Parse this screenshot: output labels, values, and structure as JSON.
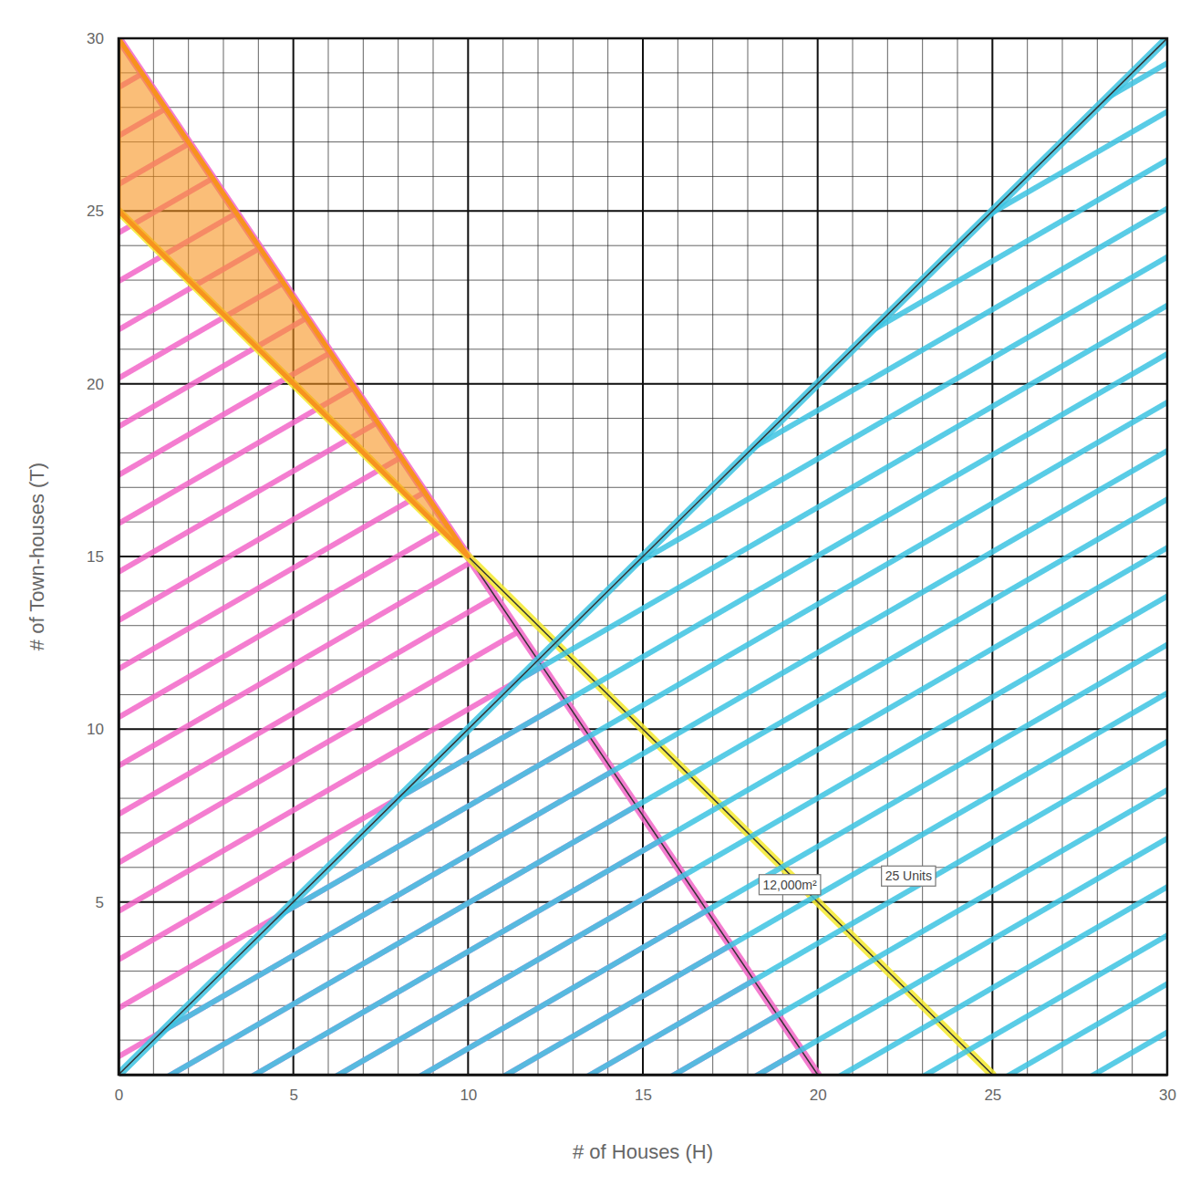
{
  "chart_data": {
    "type": "line",
    "x_label": "# of Houses (H)",
    "y_label": "# of Town-houses (T)",
    "xlim": [
      0,
      30
    ],
    "ylim": [
      0,
      30
    ],
    "xticks": [
      0,
      5,
      10,
      15,
      20,
      25,
      30
    ],
    "yticks": [
      5,
      10,
      15,
      20,
      25,
      30
    ],
    "grid": true,
    "series": [
      {
        "type": "area",
        "color": "#f266c8",
        "x": [
          0,
          20
        ],
        "values": [
          30,
          0
        ]
      },
      {
        "type": "line",
        "color": "#f4ea2e",
        "x": [
          0,
          25
        ],
        "values": [
          25,
          0
        ]
      },
      {
        "type": "area",
        "color": "#3cc3e2",
        "x": [
          0,
          30
        ],
        "values": [
          0,
          30
        ]
      },
      {
        "type": "polygon",
        "color": "#f7931e",
        "x": [
          0,
          0,
          10
        ],
        "values": [
          25,
          30,
          15
        ]
      }
    ],
    "annotations": [
      {
        "text": "12,000m²",
        "x": 19.2,
        "y": 5.5
      },
      {
        "text": "25 Units",
        "x": 22.6,
        "y": 5.75
      }
    ]
  }
}
